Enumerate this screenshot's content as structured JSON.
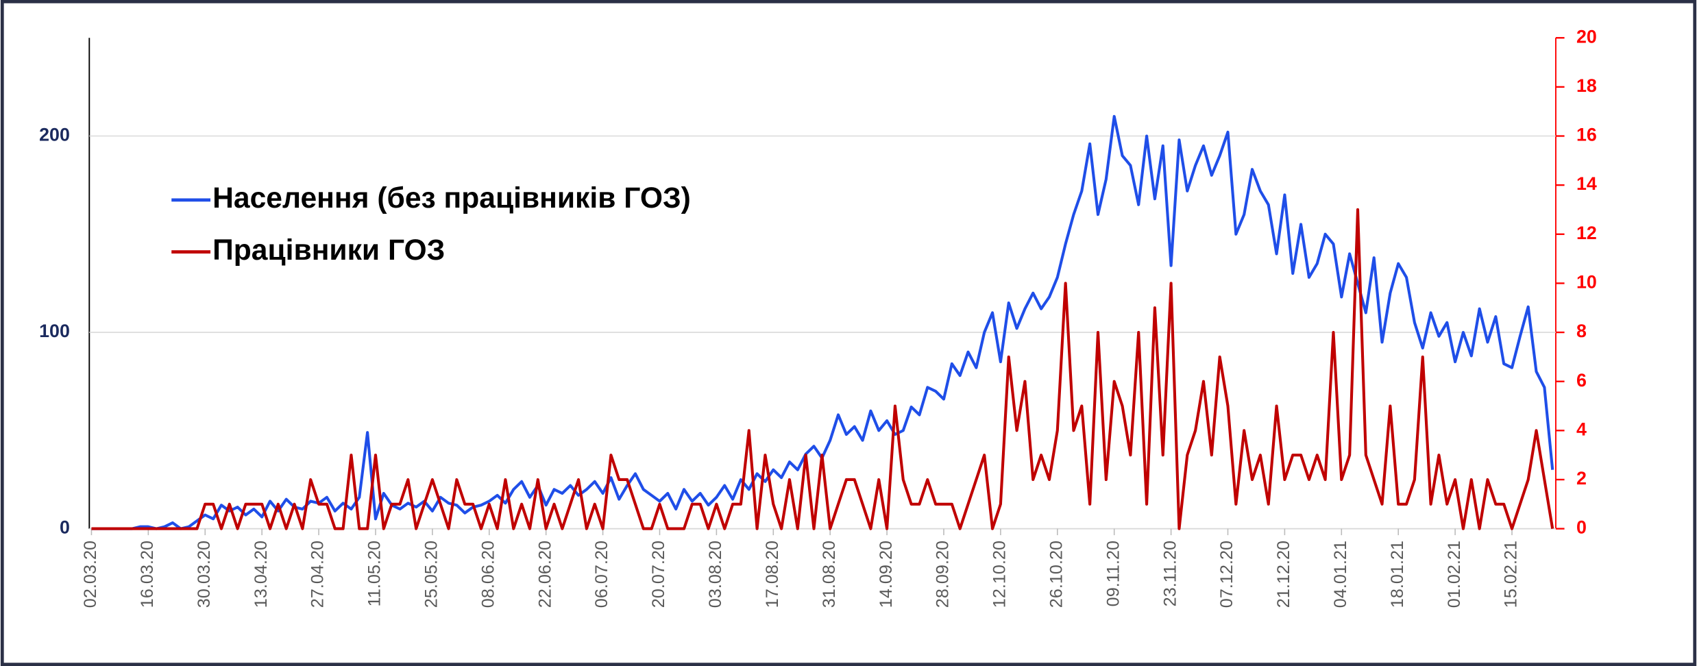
{
  "chart_data": {
    "type": "line",
    "categories": [
      "02.03.20",
      null,
      null,
      null,
      null,
      null,
      null,
      "16.03.20",
      null,
      null,
      null,
      null,
      null,
      null,
      "30.03.20",
      null,
      null,
      null,
      null,
      null,
      null,
      "13.04.20",
      null,
      null,
      null,
      null,
      null,
      null,
      "27.04.20",
      null,
      null,
      null,
      null,
      null,
      null,
      "11.05.20",
      null,
      null,
      null,
      null,
      null,
      null,
      "25.05.20",
      null,
      null,
      null,
      null,
      null,
      null,
      "08.06.20",
      null,
      null,
      null,
      null,
      null,
      null,
      "22.06.20",
      null,
      null,
      null,
      null,
      null,
      null,
      "06.07.20",
      null,
      null,
      null,
      null,
      null,
      null,
      "20.07.20",
      null,
      null,
      null,
      null,
      null,
      null,
      "03.08.20",
      null,
      null,
      null,
      null,
      null,
      null,
      "17.08.20",
      null,
      null,
      null,
      null,
      null,
      null,
      "31.08.20",
      null,
      null,
      null,
      null,
      null,
      null,
      "14.09.20",
      null,
      null,
      null,
      null,
      null,
      null,
      "28.09.20",
      null,
      null,
      null,
      null,
      null,
      null,
      "12.10.20",
      null,
      null,
      null,
      null,
      null,
      null,
      "26.10.20",
      null,
      null,
      null,
      null,
      null,
      null,
      "09.11.20",
      null,
      null,
      null,
      null,
      null,
      null,
      "23.11.20",
      null,
      null,
      null,
      null,
      null,
      null,
      "07.12.20",
      null,
      null,
      null,
      null,
      null,
      null,
      "21.12.20",
      null,
      null,
      null,
      null,
      null,
      null,
      "04.01.21",
      null,
      null,
      null,
      null,
      null,
      null,
      "18.01.21",
      null,
      null,
      null,
      null,
      null,
      null,
      "01.02.21",
      null,
      null,
      null,
      null,
      null,
      null,
      "15.02.21",
      null,
      null,
      null,
      null,
      null
    ],
    "series": [
      {
        "name": "Населення (без працівників ГОЗ)",
        "color": "#1f4ee8",
        "axis": "y",
        "values": [
          0,
          0,
          0,
          0,
          0,
          0,
          1,
          1,
          0,
          1,
          3,
          0,
          1,
          4,
          7,
          5,
          12,
          9,
          11,
          7,
          10,
          6,
          14,
          9,
          15,
          11,
          10,
          14,
          13,
          16,
          9,
          13,
          10,
          16,
          49,
          5,
          18,
          12,
          10,
          13,
          11,
          14,
          9,
          16,
          13,
          12,
          8,
          11,
          12,
          14,
          17,
          13,
          20,
          24,
          16,
          22,
          12,
          20,
          18,
          22,
          17,
          20,
          24,
          18,
          26,
          15,
          22,
          28,
          20,
          17,
          14,
          18,
          10,
          20,
          14,
          18,
          12,
          16,
          22,
          15,
          25,
          20,
          28,
          24,
          30,
          26,
          34,
          30,
          38,
          42,
          36,
          45,
          58,
          48,
          52,
          45,
          60,
          50,
          55,
          48,
          50,
          62,
          58,
          72,
          70,
          66,
          84,
          78,
          90,
          82,
          100,
          110,
          85,
          115,
          102,
          112,
          120,
          112,
          118,
          128,
          145,
          160,
          172,
          196,
          160,
          178,
          210,
          190,
          185,
          165,
          200,
          168,
          195,
          134,
          198,
          172,
          185,
          195,
          180,
          190,
          202,
          150,
          160,
          183,
          172,
          165,
          140,
          170,
          130,
          155,
          128,
          135,
          150,
          145,
          118,
          140,
          125,
          110,
          138,
          95,
          120,
          135,
          128,
          105,
          92,
          110,
          98,
          105,
          85,
          100,
          88,
          112,
          95,
          108,
          84,
          82,
          98,
          113,
          80,
          72,
          30
        ]
      },
      {
        "name": "Працівники ГОЗ",
        "color": "#c00000",
        "axis": "y2",
        "values": [
          0,
          0,
          0,
          0,
          0,
          0,
          0,
          0,
          0,
          0,
          0,
          0,
          0,
          0,
          1,
          1,
          0,
          1,
          0,
          1,
          1,
          1,
          0,
          1,
          0,
          1,
          0,
          2,
          1,
          1,
          0,
          0,
          3,
          0,
          0,
          3,
          0,
          1,
          1,
          2,
          0,
          1,
          2,
          1,
          0,
          2,
          1,
          1,
          0,
          1,
          0,
          2,
          0,
          1,
          0,
          2,
          0,
          1,
          0,
          1,
          2,
          0,
          1,
          0,
          3,
          2,
          2,
          1,
          0,
          0,
          1,
          0,
          0,
          0,
          1,
          1,
          0,
          1,
          0,
          1,
          1,
          4,
          0,
          3,
          1,
          0,
          2,
          0,
          3,
          0,
          3,
          0,
          1,
          2,
          2,
          1,
          0,
          2,
          0,
          5,
          2,
          1,
          1,
          2,
          1,
          1,
          1,
          0,
          1,
          2,
          3,
          0,
          1,
          7,
          4,
          6,
          2,
          3,
          2,
          4,
          10,
          4,
          5,
          1,
          8,
          2,
          6,
          5,
          3,
          8,
          1,
          9,
          3,
          10,
          0,
          3,
          4,
          6,
          3,
          7,
          5,
          1,
          4,
          2,
          3,
          1,
          5,
          2,
          3,
          3,
          2,
          3,
          2,
          8,
          2,
          3,
          13,
          3,
          2,
          1,
          5,
          1,
          1,
          2,
          7,
          1,
          3,
          1,
          2,
          0,
          2,
          0,
          2,
          1,
          1,
          0,
          1,
          2,
          4,
          2,
          0
        ]
      }
    ],
    "ylim": [
      0,
      250
    ],
    "yticks": [
      0,
      100,
      200
    ],
    "y2lim": [
      0,
      20
    ],
    "y2ticks": [
      0,
      2,
      4,
      6,
      8,
      10,
      12,
      14,
      16,
      18,
      20
    ],
    "grid": true,
    "legend": "upper left",
    "y_tick_color": "#1b2a5e",
    "y2_tick_color": "#ff0000"
  }
}
